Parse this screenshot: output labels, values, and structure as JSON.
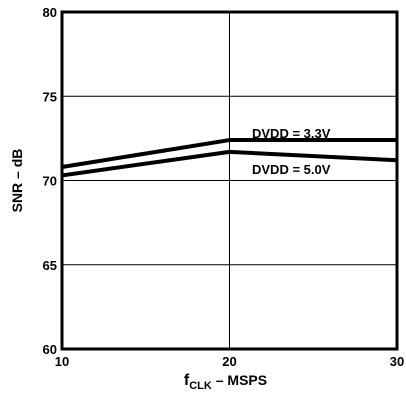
{
  "chart_data": {
    "type": "line",
    "title": "",
    "xlabel": {
      "main": "f",
      "sub": "CLK",
      "rest": " – MSPS"
    },
    "ylabel": "SNR – dB",
    "xlim": [
      10,
      30
    ],
    "ylim": [
      60,
      80
    ],
    "xticks": [
      10,
      20,
      30
    ],
    "yticks": [
      60,
      65,
      70,
      75,
      80
    ],
    "grid": true,
    "series": [
      {
        "name": "DVDD = 3.3V",
        "x": [
          10,
          20,
          30
        ],
        "y": [
          70.8,
          72.4,
          72.4
        ]
      },
      {
        "name": "DVDD = 5.0V",
        "x": [
          10,
          20,
          30
        ],
        "y": [
          70.3,
          71.7,
          71.2
        ]
      }
    ]
  },
  "colors": {
    "line": "#000000",
    "grid": "#000000",
    "background": "#ffffff"
  }
}
